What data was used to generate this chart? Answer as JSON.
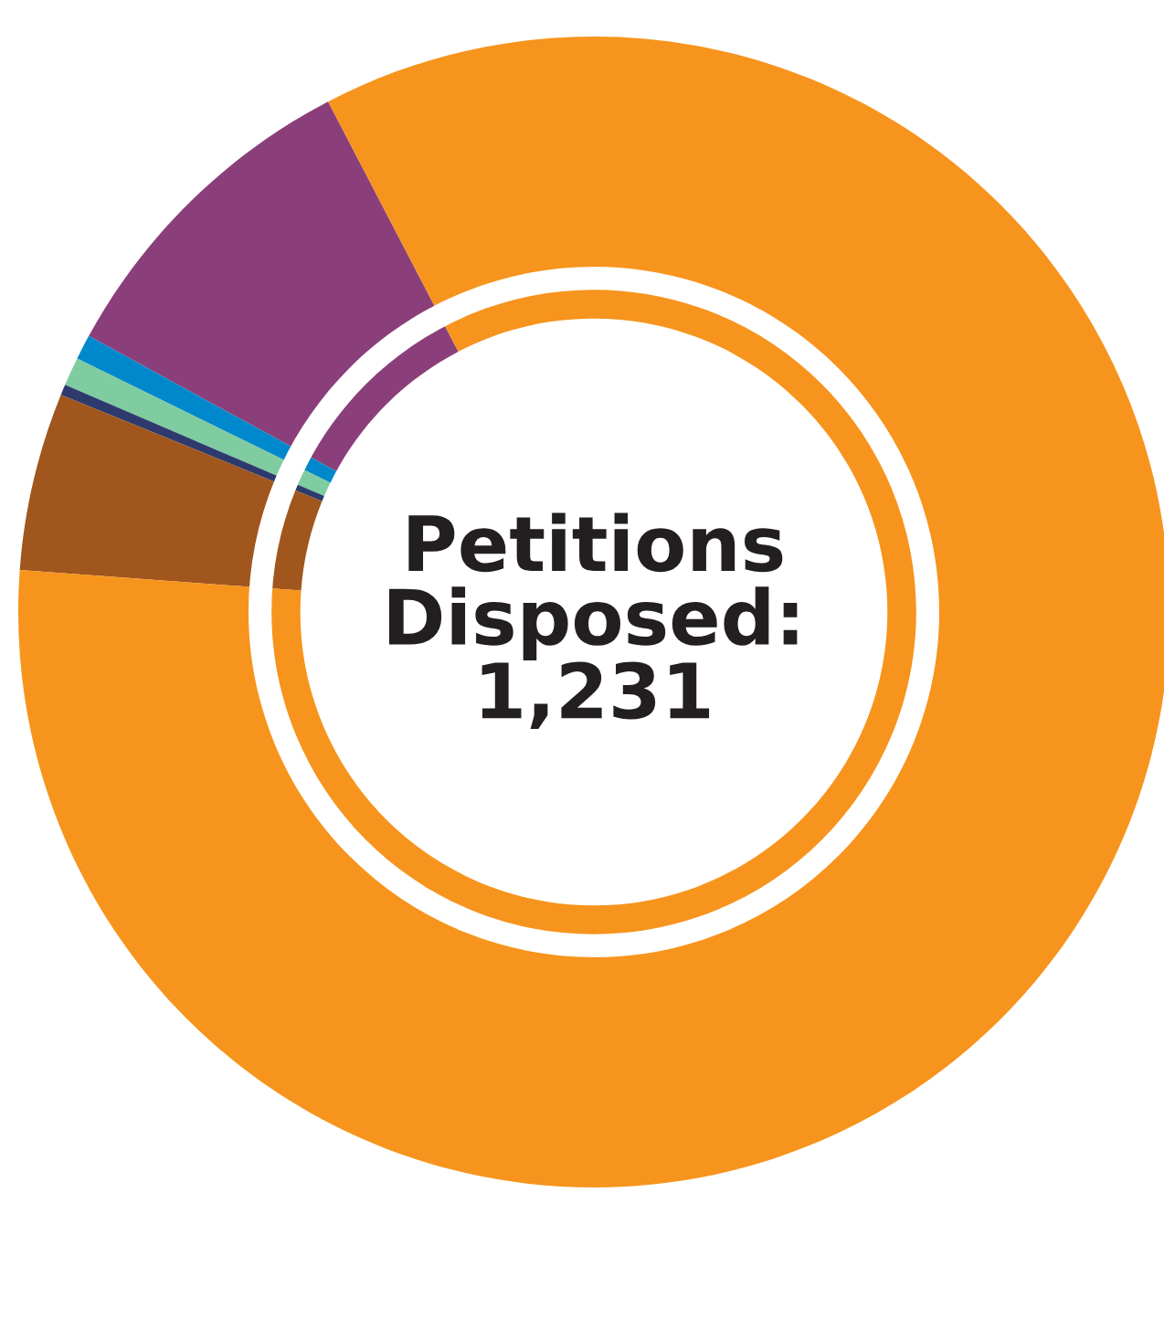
{
  "chart_data": {
    "type": "donut",
    "title": "Petitions\nDisposed:\n1,231",
    "categories": [
      null,
      null,
      null,
      null,
      null,
      null
    ],
    "values": [
      9.4,
      0.7,
      0.8,
      0.3,
      5.0,
      83.8
    ],
    "colors": [
      "#8b3f7a",
      "#0088cc",
      "#7fcca0",
      "#2e3a6e",
      "#a0561c",
      "#f7941d"
    ]
  }
}
